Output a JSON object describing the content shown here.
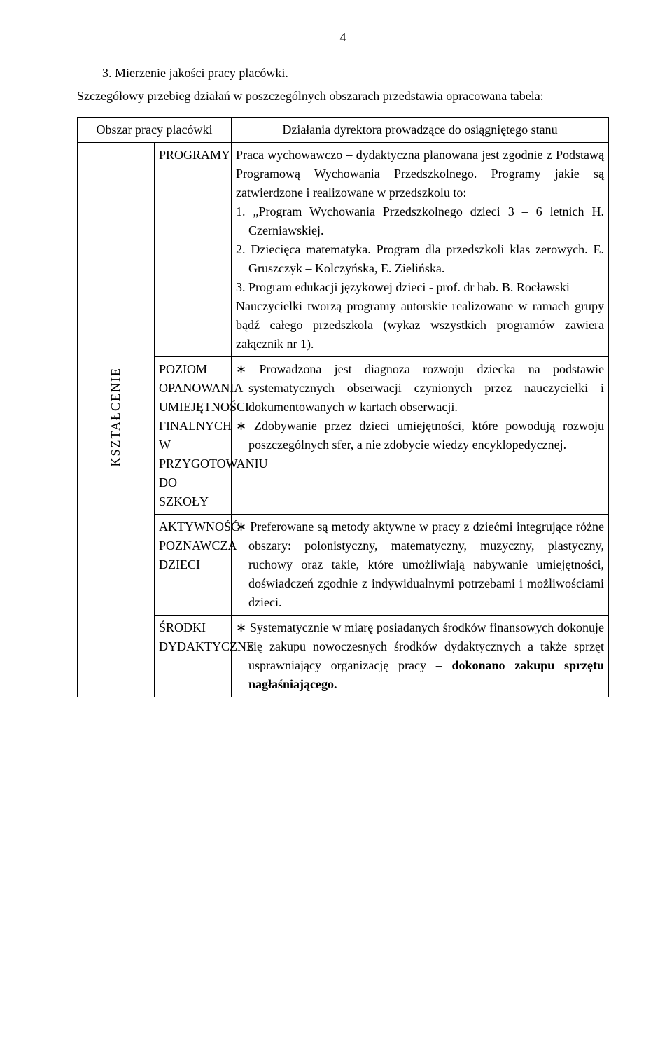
{
  "page_number": "4",
  "intro": {
    "point": "3. Mierzenie jakości pracy placówki.",
    "text": "Szczegółowy przebieg działań w poszczególnych obszarach przedstawia opracowana tabela:"
  },
  "table": {
    "header": {
      "left_merged": "Obszar pracy placówki",
      "right": "Działania dyrektora prowadzące do osiągniętego stanu"
    },
    "vertical_label": "KSZTAŁCENIE",
    "rows": [
      {
        "mid": "PROGRAMY",
        "right_intro": "Praca wychowawczo – dydaktyczna planowana jest zgodnie z Podstawą Programową Wychowania Przedszkolnego. Programy jakie są zatwierdzone i realizowane w przedszkolu to:",
        "right_items": [
          "1. „Program Wychowania Przedszkolnego dzieci 3 – 6 letnich H. Czerniawskiej.",
          "2. Dziecięca matematyka. Program dla przedszkoli klas zerowych. E. Gruszczyk – Kolczyńska, E. Zielińska.",
          "3. Program edukacji językowej dzieci - prof. dr hab. B. Rocławski"
        ],
        "right_outro": "Nauczycielki tworzą programy autorskie realizowane w ramach grupy bądź całego przedszkola (wykaz wszystkich programów zawiera załącznik nr 1)."
      },
      {
        "mid": "POZIOM OPANOWANIA UMIEJĘTNOŚCI FINALNYCH W PRZYGOTOWANIU DO SZKOŁY",
        "right_bullets": [
          "Prowadzona jest diagnoza rozwoju dziecka na podstawie systematycznych obserwacji czynionych przez nauczycielki i dokumentowanych w kartach obserwacji.",
          "Zdobywanie przez dzieci umiejętności, które powodują rozwoju poszczególnych sfer, a nie zdobycie wiedzy encyklopedycznej."
        ]
      },
      {
        "mid": "AKTYWNOŚĆ POZNAWCZA DZIECI",
        "right_bullets": [
          "Preferowane są metody aktywne w pracy z dziećmi integrujące różne obszary: polonistyczny, matematyczny, muzyczny, plastyczny, ruchowy oraz takie, które umożliwiają nabywanie umiejętności, doświadczeń zgodnie z indywidualnymi potrzebami i możliwościami dzieci."
        ]
      },
      {
        "mid": "ŚRODKI DYDAKTYCZNE",
        "right_bullets_html": "Systematycznie w miarę posiadanych środków finansowych dokonuje się zakupu nowoczesnych środków dydaktycznych a także sprzęt usprawniający organizację pracy – <b>dokonano zakupu sprzętu nagłaśniającego.</b>"
      }
    ]
  }
}
